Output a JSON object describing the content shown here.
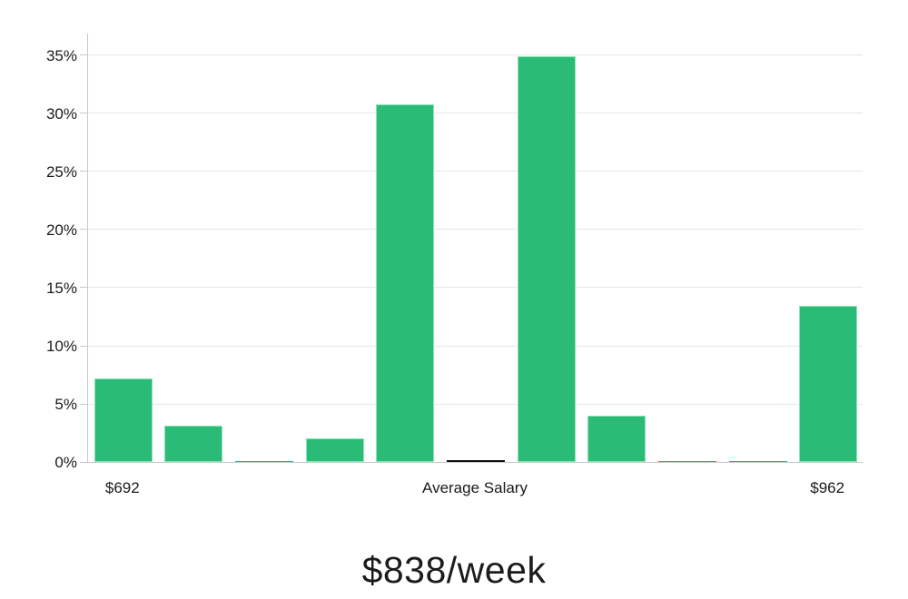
{
  "chart_data": {
    "type": "bar",
    "title": "$838/week",
    "xlabel": "",
    "ylabel": "",
    "categories": [
      "$692",
      "",
      "",
      "",
      "",
      "Average Salary",
      "",
      "",
      "",
      "",
      "$962"
    ],
    "values": [
      7.2,
      3.1,
      0.1,
      2.0,
      30.8,
      0.15,
      34.9,
      4.0,
      0.1,
      0.1,
      13.4
    ],
    "bar_roles": [
      "data",
      "data",
      "data",
      "data",
      "data",
      "average-marker",
      "data",
      "data",
      "data",
      "data",
      "data"
    ],
    "x_range_labels": {
      "min": "$692",
      "mid": "Average Salary",
      "max": "$962"
    },
    "ytick_values": [
      0,
      5,
      10,
      15,
      20,
      25,
      30,
      35
    ],
    "ytick_labels": [
      "0%",
      "5%",
      "10%",
      "15%",
      "20%",
      "25%",
      "30%",
      "35%"
    ],
    "ylim": [
      0,
      36.95
    ],
    "grid": true,
    "legend": false,
    "colors": {
      "bar_fill": "#2abb76",
      "bar_edge": "#8ce3b6",
      "average_bar_fill": "#111111",
      "gridline": "#e6e6e6",
      "axis_line": "#c9c9c9",
      "tick": "#c9c9c9",
      "label_text": "#1a1a1a",
      "title_text": "#1c1c1c",
      "background": "#ffffff"
    }
  }
}
